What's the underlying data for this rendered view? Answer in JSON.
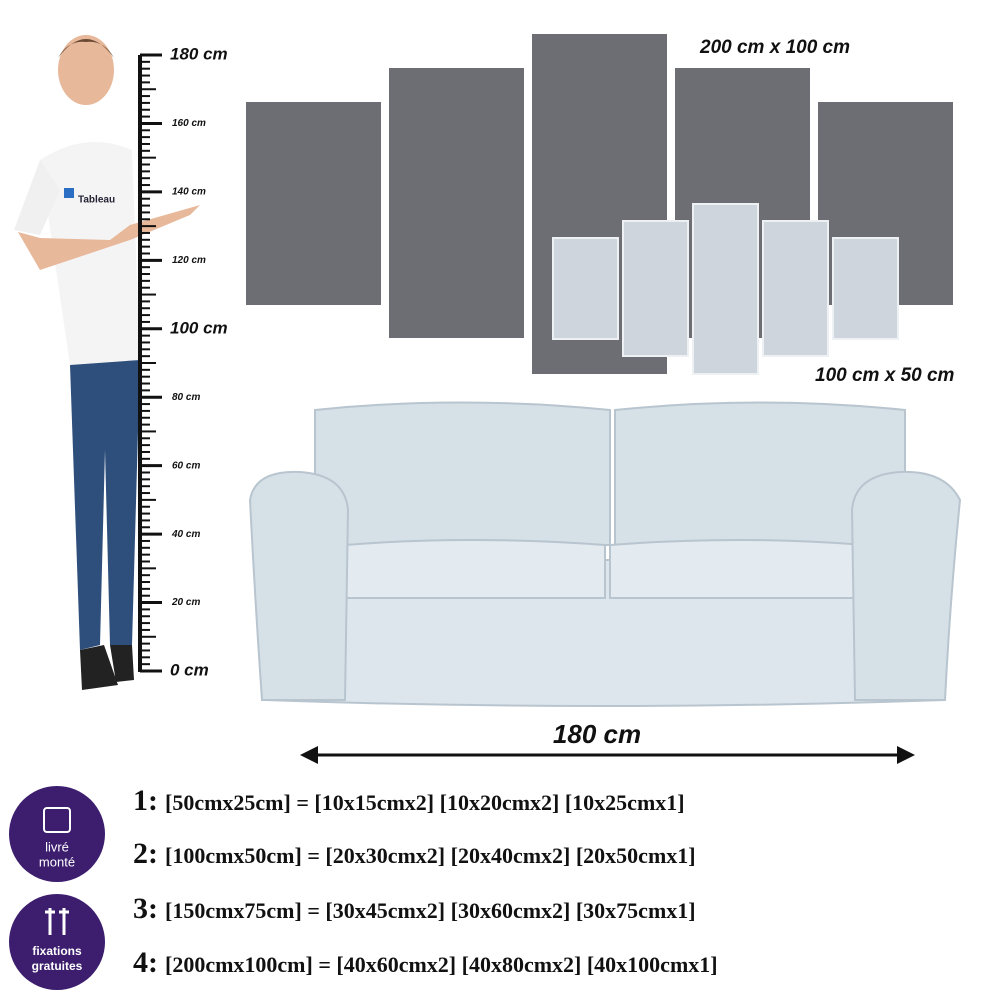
{
  "ruler": {
    "labels": [
      "180 cm",
      "160 cm",
      "140 cm",
      "120 cm",
      "100 cm",
      "80 cm",
      "60 cm",
      "40 cm",
      "20 cm",
      "0 cm"
    ]
  },
  "person": {
    "shirt_logo": "Tableau"
  },
  "canvas": {
    "large_size": "200 cm x 100 cm",
    "small_size": "100 cm x 50 cm"
  },
  "sofa": {
    "width": "180 cm"
  },
  "badges": [
    {
      "line1": "livré",
      "line2": "monté"
    },
    {
      "line1": "fixations",
      "line2": "gratuites"
    }
  ],
  "sizes": [
    {
      "number": "1:",
      "text": "[50cmx25cm] = [10x15cmx2] [10x20cmx2] [10x25cmx1]"
    },
    {
      "number": "2:",
      "text": "[100cmx50cm] = [20x30cmx2] [20x40cmx2] [20x50cmx1]"
    },
    {
      "number": "3:",
      "text": "[150cmx75cm] = [30x45cmx2] [30x60cmx2] [30x75cmx1]"
    },
    {
      "number": "4:",
      "text": "[200cmx100cm] = [40x60cmx2] [40x80cmx2] [40x100cmx1]"
    }
  ]
}
